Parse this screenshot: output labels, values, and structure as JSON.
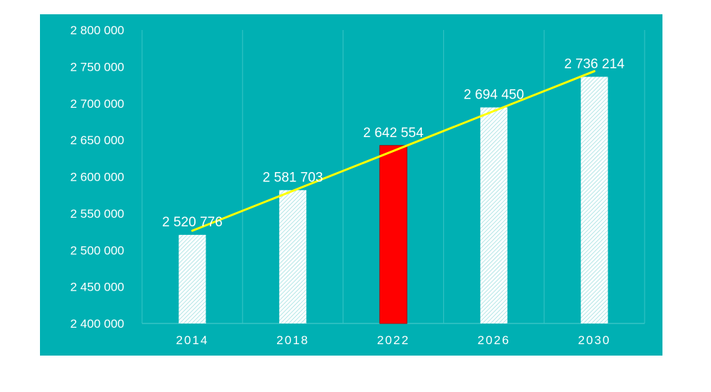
{
  "colors": {
    "background": "#00b0b3",
    "gridline": "#39c3c5",
    "bar_fill": "#ffffff",
    "bar_hatch": "#9fdfe0",
    "highlight_bar": "#ff0000",
    "trendline": "#ffff00",
    "text": "#ffffff"
  },
  "chart_data": {
    "type": "bar",
    "categories": [
      "2014",
      "2018",
      "2022",
      "2026",
      "2030"
    ],
    "values": [
      2520776,
      2581703,
      2642554,
      2694450,
      2736214
    ],
    "value_labels": [
      "2 520 776",
      "2 581 703",
      "2 642 554",
      "2 694 450",
      "2 736 214"
    ],
    "highlight_category": "2022",
    "trendline": "linear",
    "ylim": [
      2400000,
      2800000
    ],
    "y_ticks": [
      2400000,
      2450000,
      2500000,
      2550000,
      2600000,
      2650000,
      2700000,
      2750000,
      2800000
    ],
    "y_tick_labels": [
      "2 400 000",
      "2 450 000",
      "2 500 000",
      "2 550 000",
      "2 600 000",
      "2 650 000",
      "2 700 000",
      "2 750 000",
      "2 800 000"
    ],
    "grid": "vertical",
    "legend": "none",
    "title": "",
    "xlabel": "",
    "ylabel": ""
  }
}
